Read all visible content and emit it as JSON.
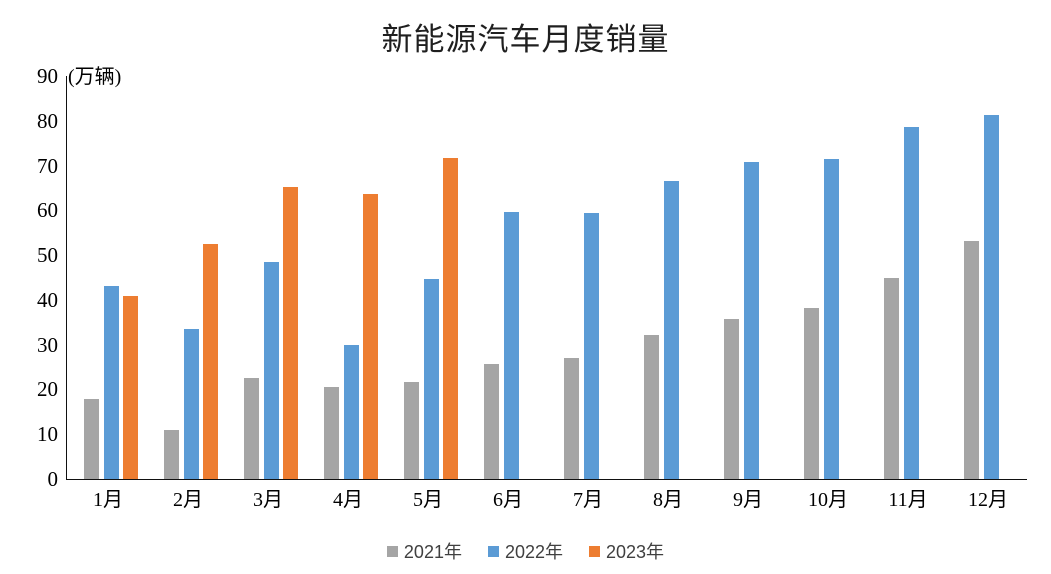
{
  "chart_data": {
    "type": "bar",
    "title": "新能源汽车月度销量",
    "unit_label": "(万辆)",
    "xlabel": "",
    "ylabel": "万辆",
    "categories": [
      "1月",
      "2月",
      "3月",
      "4月",
      "5月",
      "6月",
      "7月",
      "8月",
      "9月",
      "10月",
      "11月",
      "12月"
    ],
    "series": [
      {
        "name": "2021年",
        "color": "#A5A5A5",
        "values": [
          17.9,
          11.0,
          22.6,
          20.6,
          21.7,
          25.6,
          27.1,
          32.1,
          35.7,
          38.3,
          45.0,
          53.1
        ]
      },
      {
        "name": "2022年",
        "color": "#5B9BD5",
        "values": [
          43.1,
          33.4,
          48.4,
          29.9,
          44.7,
          59.6,
          59.3,
          66.6,
          70.8,
          71.4,
          78.6,
          81.4
        ]
      },
      {
        "name": "2023年",
        "color": "#ED7D31",
        "values": [
          40.8,
          52.5,
          65.3,
          63.6,
          71.7,
          null,
          null,
          null,
          null,
          null,
          null,
          null
        ]
      }
    ],
    "ylim": [
      0,
      90
    ],
    "yticks": [
      0,
      10,
      20,
      30,
      40,
      50,
      60,
      70,
      80,
      90
    ],
    "grid": false,
    "legend_position": "bottom",
    "axis_color": "#111111"
  }
}
